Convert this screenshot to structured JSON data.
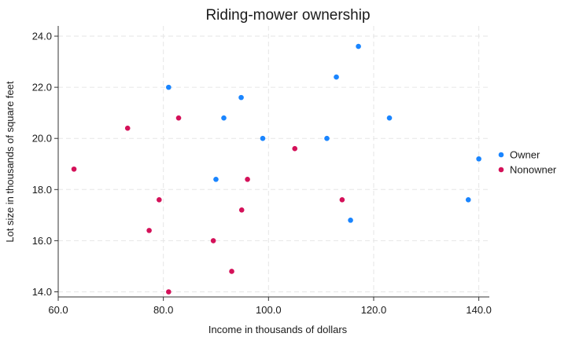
{
  "chart_data": {
    "type": "scatter",
    "title": "Riding-mower ownership",
    "xlabel": "Income in thousands of dollars",
    "ylabel": "Lot size in thousands of square feet",
    "xlim": [
      60,
      142
    ],
    "ylim": [
      13.8,
      24.4
    ],
    "xticks": [
      60,
      80,
      100,
      120,
      140
    ],
    "yticks": [
      14,
      16,
      18,
      20,
      22,
      24
    ],
    "xtick_labels": [
      "60.0",
      "80.0",
      "100.0",
      "120.0",
      "140.0"
    ],
    "ytick_labels": [
      "14.0",
      "16.0",
      "18.0",
      "20.0",
      "22.0",
      "24.0"
    ],
    "grid": true,
    "legend_position": "right",
    "series": [
      {
        "name": "Owner",
        "color": "#1a85ff",
        "points": [
          [
            81.0,
            22.0
          ],
          [
            91.5,
            20.8
          ],
          [
            94.8,
            21.6
          ],
          [
            90.0,
            18.4
          ],
          [
            98.9,
            20.0
          ],
          [
            112.9,
            22.4
          ],
          [
            117.1,
            23.6
          ],
          [
            111.1,
            20.0
          ],
          [
            115.6,
            16.8
          ],
          [
            123.0,
            20.8
          ],
          [
            138.0,
            17.6
          ],
          [
            140.0,
            19.2
          ]
        ]
      },
      {
        "name": "Nonowner",
        "color": "#d41159",
        "points": [
          [
            63.0,
            18.8
          ],
          [
            73.2,
            20.4
          ],
          [
            82.9,
            20.8
          ],
          [
            79.2,
            17.6
          ],
          [
            77.3,
            16.4
          ],
          [
            81.0,
            14.0
          ],
          [
            89.5,
            16.0
          ],
          [
            93.0,
            14.8
          ],
          [
            94.9,
            17.2
          ],
          [
            96.0,
            18.4
          ],
          [
            105.0,
            19.6
          ],
          [
            114.0,
            17.6
          ]
        ]
      }
    ]
  }
}
